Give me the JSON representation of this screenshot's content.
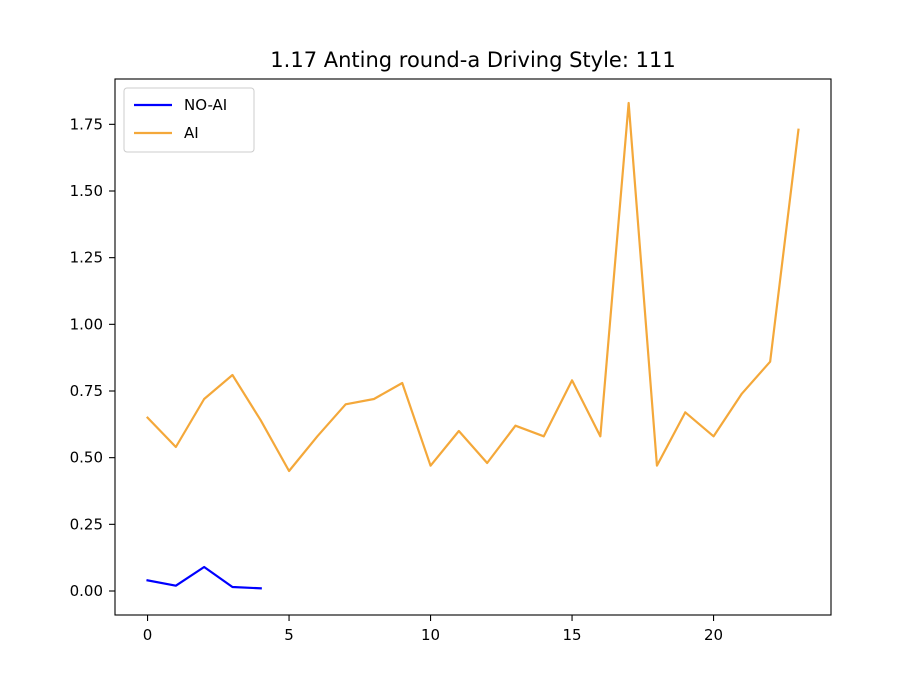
{
  "chart_data": {
    "type": "line",
    "title": "1.17 Anting round-a Driving Style: 111",
    "xlabel": "",
    "ylabel": "",
    "xlim": [
      -1.15,
      24.15
    ],
    "ylim": [
      -0.09,
      1.92
    ],
    "x_ticks": [
      0,
      5,
      10,
      15,
      20
    ],
    "y_ticks": [
      0.0,
      0.25,
      0.5,
      0.75,
      1.0,
      1.25,
      1.5,
      1.75
    ],
    "x_tick_labels": [
      "0",
      "5",
      "10",
      "15",
      "20"
    ],
    "y_tick_labels": [
      "0.00",
      "0.25",
      "0.50",
      "0.75",
      "1.00",
      "1.25",
      "1.50",
      "1.75"
    ],
    "grid": false,
    "legend_position": "top-left",
    "series": [
      {
        "name": "NO-AI",
        "color": "#0000ff",
        "x": [
          0,
          1,
          2,
          3,
          4
        ],
        "y": [
          0.04,
          0.02,
          0.09,
          0.015,
          0.01
        ]
      },
      {
        "name": "AI",
        "color": "#f4a83a",
        "x": [
          0,
          1,
          2,
          3,
          4,
          5,
          6,
          7,
          8,
          9,
          10,
          11,
          12,
          13,
          14,
          15,
          16,
          17,
          18,
          19,
          20,
          21,
          22,
          23
        ],
        "y": [
          0.65,
          0.54,
          0.72,
          0.81,
          0.64,
          0.45,
          0.58,
          0.7,
          0.72,
          0.78,
          0.47,
          0.6,
          0.48,
          0.62,
          0.58,
          0.79,
          0.58,
          1.83,
          0.47,
          0.67,
          0.58,
          0.74,
          0.86,
          1.73
        ]
      }
    ]
  }
}
